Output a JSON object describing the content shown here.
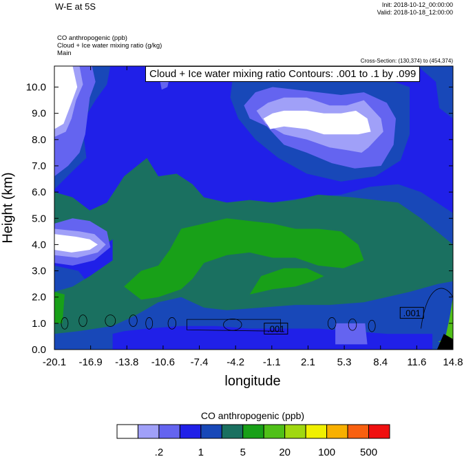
{
  "header": {
    "title": "W-E at 5S",
    "init": "Init: 2018-10-12_00:00:00",
    "valid": "Valid: 2018-10-18_12:00:00"
  },
  "info": {
    "line1": "CO anthropogenic   (ppb)",
    "line2": "Cloud + Ice water mixing ratio   (g/kg)",
    "line3": "Main"
  },
  "cross_section": "Cross-Section: (130,374) to (454,374)",
  "contour_label": "Cloud + Ice water mixing ratio Contours: .001 to .1 by .099",
  "colorbar": {
    "title": "CO anthropogenic  (ppb)",
    "colors": [
      "#ffffff",
      "#a0a0f8",
      "#6464f0",
      "#2020e8",
      "#1848b8",
      "#1a7060",
      "#18a018",
      "#50c018",
      "#a0d810",
      "#f0f000",
      "#f8b000",
      "#f86010",
      "#f01010"
    ],
    "tick_labels": [
      {
        "label": ".2",
        "boundary": 2
      },
      {
        "label": "1",
        "boundary": 4
      },
      {
        "label": "5",
        "boundary": 6
      },
      {
        "label": "20",
        "boundary": 8
      },
      {
        "label": "100",
        "boundary": 10
      },
      {
        "label": "500",
        "boundary": 12
      }
    ]
  },
  "chart_data": {
    "type": "heatmap",
    "title": "W-E at 5S",
    "xlabel": "longitude",
    "ylabel": "Height (km)",
    "xlim": [
      -20.1,
      14.8
    ],
    "ylim": [
      0.0,
      10.8
    ],
    "x_ticks": [
      "-20.1",
      "-16.9",
      "-13.8",
      "-10.6",
      "-7.4",
      "-4.2",
      "-1.1",
      "2.1",
      "5.3",
      "8.4",
      "11.6",
      "14.8"
    ],
    "y_ticks": [
      "0.0",
      "1.0",
      "2.0",
      "3.0",
      "4.0",
      "5.0",
      "6.0",
      "7.0",
      "8.0",
      "9.0",
      "10.0"
    ],
    "fill_variable": "CO anthropogenic (ppb)",
    "contour_variable": "Cloud + Ice water mixing ratio (g/kg)",
    "contour_line_labels": [
      {
        "text": ".001",
        "lon": -0.7,
        "height": 0.8
      },
      {
        "text": ".001",
        "lon": 11.2,
        "height": 1.4
      }
    ],
    "regions": [
      {
        "level": "1-2",
        "color": "#2020e8",
        "poly": [
          [
            -20.1,
            0
          ],
          [
            14.8,
            0
          ],
          [
            14.8,
            10.8
          ],
          [
            -20.1,
            10.8
          ]
        ]
      },
      {
        "level": "2-5",
        "color": "#1848b8",
        "poly": [
          [
            -16,
            1.9
          ],
          [
            -13,
            2.3
          ],
          [
            -10,
            3.8
          ],
          [
            -7,
            5.5
          ],
          [
            -4,
            5.6
          ],
          [
            -1,
            5.6
          ],
          [
            2,
            5.8
          ],
          [
            5,
            5.9
          ],
          [
            7.5,
            6.2
          ],
          [
            10,
            6.3
          ],
          [
            12,
            6.0
          ],
          [
            14.8,
            5.2
          ],
          [
            14.8,
            0
          ],
          [
            -20.1,
            0
          ],
          [
            -20.1,
            3.2
          ],
          [
            -18,
            3.0
          ]
        ]
      },
      {
        "level": "2-5",
        "color": "#1848b8",
        "poly": [
          [
            -20.1,
            6.1
          ],
          [
            -18.5,
            6.8
          ],
          [
            -17.3,
            7.3
          ],
          [
            -17.5,
            8.0
          ],
          [
            -17.2,
            9.0
          ],
          [
            -16.5,
            9.5
          ],
          [
            -16,
            9.8
          ],
          [
            -15.5,
            10.1
          ],
          [
            -15.2,
            10.8
          ],
          [
            -20.1,
            10.8
          ]
        ]
      },
      {
        "level": "2-5",
        "color": "#1848b8",
        "poly": [
          [
            -4.5,
            10.3
          ],
          [
            -3,
            10.5
          ],
          [
            0,
            10.6
          ],
          [
            3,
            10.4
          ],
          [
            6,
            10.5
          ],
          [
            9,
            10.3
          ],
          [
            11,
            10.0
          ],
          [
            11,
            8.2
          ],
          [
            10.2,
            7.2
          ],
          [
            8,
            6.6
          ],
          [
            5,
            6.4
          ],
          [
            2,
            6.7
          ],
          [
            -0.5,
            7.3
          ],
          [
            -2.5,
            8.0
          ],
          [
            -4,
            8.8
          ],
          [
            -4.7,
            9.6
          ]
        ]
      },
      {
        "level": "2-5",
        "color": "#1848b8",
        "poly": [
          [
            11.7,
            10.8
          ],
          [
            13.3,
            10.2
          ],
          [
            13.6,
            9.2
          ],
          [
            14.8,
            8.8
          ],
          [
            14.8,
            10.8
          ]
        ]
      },
      {
        "level": "5-10",
        "color": "#1a7060",
        "poly": [
          [
            -20.1,
            0.6
          ],
          [
            -18,
            0.7
          ],
          [
            -15,
            0.9
          ],
          [
            -13,
            1.3
          ],
          [
            -11,
            1.8
          ],
          [
            -9,
            2.0
          ],
          [
            -7,
            1.6
          ],
          [
            -5,
            1.5
          ],
          [
            -2,
            1.6
          ],
          [
            1,
            1.7
          ],
          [
            4,
            1.7
          ],
          [
            7,
            1.8
          ],
          [
            9,
            2.0
          ],
          [
            11,
            2.2
          ],
          [
            13.5,
            2.5
          ],
          [
            14.8,
            2.6
          ],
          [
            14.8,
            4.0
          ],
          [
            12,
            5.0
          ],
          [
            10,
            5.6
          ],
          [
            8,
            5.7
          ],
          [
            6,
            5.8
          ],
          [
            3,
            5.9
          ],
          [
            1,
            5.7
          ],
          [
            -1,
            5.6
          ],
          [
            -3,
            5.7
          ],
          [
            -5,
            5.6
          ],
          [
            -7,
            5.8
          ],
          [
            -8,
            6.3
          ],
          [
            -9.4,
            6.7
          ],
          [
            -11,
            6.6
          ],
          [
            -12,
            7.3
          ],
          [
            -14,
            6.6
          ],
          [
            -15.5,
            5.6
          ],
          [
            -17,
            5.3
          ],
          [
            -18.5,
            5.8
          ],
          [
            -20.1,
            6.0
          ],
          [
            -20.1,
            4.4
          ],
          [
            -19,
            4.4
          ],
          [
            -18,
            4.1
          ],
          [
            -16,
            3.9
          ],
          [
            -15,
            4.2
          ],
          [
            -15,
            3.4
          ],
          [
            -17,
            2.8
          ],
          [
            -18.5,
            2.4
          ],
          [
            -20.1,
            2.2
          ]
        ]
      },
      {
        "level": "10-20",
        "color": "#18a018",
        "poly": [
          [
            -14,
            2.4
          ],
          [
            -12.5,
            3.0
          ],
          [
            -11,
            3.2
          ],
          [
            -10,
            3.8
          ],
          [
            -9,
            4.6
          ],
          [
            -7,
            4.8
          ],
          [
            -5,
            5.0
          ],
          [
            -3,
            4.9
          ],
          [
            -1,
            4.8
          ],
          [
            1,
            4.6
          ],
          [
            3,
            4.6
          ],
          [
            5,
            4.5
          ],
          [
            6.5,
            4.0
          ],
          [
            7,
            3.4
          ],
          [
            5.2,
            3.1
          ],
          [
            3,
            3.2
          ],
          [
            1,
            3.5
          ],
          [
            -1,
            3.5
          ],
          [
            -3,
            3.7
          ],
          [
            -5,
            3.6
          ],
          [
            -7,
            3.3
          ],
          [
            -8,
            2.7
          ],
          [
            -9,
            2.3
          ],
          [
            -11,
            2.0
          ],
          [
            -12.5,
            1.9
          ]
        ]
      },
      {
        "level": "10-20",
        "color": "#18a018",
        "poly": [
          [
            -20.1,
            1.0
          ],
          [
            -19.4,
            1.0
          ],
          [
            -19.2,
            2.1
          ],
          [
            -20.1,
            2.2
          ]
        ]
      },
      {
        "level": "10-20",
        "color": "#18a018",
        "poly": [
          [
            -3,
            2.1
          ],
          [
            -1,
            2.3
          ],
          [
            1,
            2.4
          ],
          [
            2.5,
            2.6
          ],
          [
            3.5,
            2.8
          ],
          [
            2,
            3.1
          ],
          [
            0,
            3.1
          ],
          [
            -2,
            2.8
          ]
        ]
      },
      {
        "level": "20-50",
        "color": "#50c018",
        "poly": [
          [
            13.5,
            0.3
          ],
          [
            14.1,
            0.4
          ],
          [
            14.5,
            1.2
          ],
          [
            14.8,
            2.0
          ],
          [
            14.8,
            0.2
          ]
        ]
      },
      {
        "level": "1-2",
        "color": "#2020e8",
        "poly": [
          [
            -15,
            0.0
          ],
          [
            13,
            0.0
          ],
          [
            13,
            0.6
          ],
          [
            9,
            0.6
          ],
          [
            6,
            0.7
          ],
          [
            3,
            0.8
          ],
          [
            0,
            0.8
          ],
          [
            -3,
            0.8
          ],
          [
            -6,
            0.9
          ],
          [
            -9,
            0.9
          ],
          [
            -12,
            0.8
          ],
          [
            -14,
            0.7
          ],
          [
            -15,
            0.6
          ]
        ]
      },
      {
        "level": "0.5-1",
        "color": "#6464f0",
        "poly": [
          [
            -20.1,
            4.8
          ],
          [
            -18.5,
            5.0
          ],
          [
            -17,
            4.9
          ],
          [
            -15.5,
            4.5
          ],
          [
            -15.2,
            3.9
          ],
          [
            -16.6,
            3.4
          ],
          [
            -18.5,
            3.2
          ],
          [
            -20.1,
            3.3
          ]
        ]
      },
      {
        "level": "0.5-1",
        "color": "#6464f0",
        "poly": [
          [
            -3.5,
            9.3
          ],
          [
            -2.5,
            9.8
          ],
          [
            -1,
            10.0
          ],
          [
            1,
            9.9
          ],
          [
            3,
            9.8
          ],
          [
            5,
            9.7
          ],
          [
            7,
            9.8
          ],
          [
            9,
            9.4
          ],
          [
            9.8,
            8.8
          ],
          [
            9.6,
            7.8
          ],
          [
            8.5,
            7.0
          ],
          [
            6.2,
            6.9
          ],
          [
            4.2,
            7.1
          ],
          [
            2,
            7.5
          ],
          [
            0,
            7.8
          ],
          [
            -1.5,
            8.5
          ],
          [
            -3,
            8.8
          ]
        ]
      },
      {
        "level": "0.5-1",
        "color": "#6464f0",
        "poly": [
          [
            -20.1,
            10.8
          ],
          [
            -16.8,
            10.8
          ],
          [
            -16.5,
            10.2
          ],
          [
            -17,
            9.6
          ],
          [
            -17.4,
            8.2
          ],
          [
            -17.9,
            7.5
          ],
          [
            -18.9,
            7.0
          ],
          [
            -20.1,
            6.6
          ]
        ]
      },
      {
        "level": "0.5-1",
        "color": "#6464f0",
        "poly": [
          [
            -11.1,
            10.8
          ],
          [
            -9.8,
            10.8
          ],
          [
            -10.2,
            10.0
          ],
          [
            -10.7,
            9.9
          ]
        ]
      },
      {
        "level": "0.5-1",
        "color": "#6464f0",
        "poly": [
          [
            4.5,
            1.0
          ],
          [
            7.1,
            1.0
          ],
          [
            7.3,
            0.2
          ],
          [
            4.5,
            0.2
          ]
        ]
      },
      {
        "level": "0.2-0.5",
        "color": "#a0a0f8",
        "poly": [
          [
            -20.1,
            4.6
          ],
          [
            -17.9,
            4.5
          ],
          [
            -16.6,
            4.4
          ],
          [
            -15.6,
            4.0
          ],
          [
            -16.3,
            3.7
          ],
          [
            -18.1,
            3.5
          ],
          [
            -20.1,
            3.6
          ]
        ]
      },
      {
        "level": "0.2-0.5",
        "color": "#a0a0f8",
        "poly": [
          [
            -2.4,
            9.1
          ],
          [
            -1.4,
            9.4
          ],
          [
            0,
            9.6
          ],
          [
            2,
            9.6
          ],
          [
            4,
            9.3
          ],
          [
            5.5,
            9.3
          ],
          [
            7,
            9.5
          ],
          [
            8.5,
            8.8
          ],
          [
            8.7,
            8.3
          ],
          [
            7.4,
            7.7
          ],
          [
            6.8,
            7.5
          ],
          [
            5.5,
            7.6
          ],
          [
            4,
            7.7
          ],
          [
            2,
            8.0
          ],
          [
            0,
            8.2
          ],
          [
            -1.6,
            8.6
          ]
        ]
      },
      {
        "level": "0.2-0.5",
        "color": "#a0a0f8",
        "poly": [
          [
            -20.1,
            10.8
          ],
          [
            -17.9,
            10.8
          ],
          [
            -17.6,
            10.1
          ],
          [
            -18.2,
            9.5
          ],
          [
            -18.6,
            8.8
          ],
          [
            -19.1,
            8.3
          ],
          [
            -20.1,
            8.1
          ]
        ]
      },
      {
        "level": "0.2-0.5",
        "color": "#a0a0f8",
        "poly": [
          [
            -12.1,
            10.8
          ],
          [
            -11.2,
            10.8
          ],
          [
            -11.4,
            10.4
          ],
          [
            -11.9,
            10.4
          ]
        ]
      },
      {
        "level": "0.1-0.2",
        "color": "#ffffff",
        "poly": [
          [
            -20.1,
            10.8
          ],
          [
            -18.5,
            10.8
          ],
          [
            -18.1,
            10.0
          ],
          [
            -18.6,
            9.4
          ],
          [
            -19.3,
            8.6
          ],
          [
            -20.1,
            8.4
          ]
        ]
      },
      {
        "level": "0.1-0.2",
        "color": "#ffffff",
        "poly": [
          [
            -20.1,
            4.4
          ],
          [
            -18.2,
            4.3
          ],
          [
            -17,
            4.2
          ],
          [
            -16.3,
            4.0
          ],
          [
            -17,
            3.8
          ],
          [
            -18.6,
            3.7
          ],
          [
            -20.1,
            3.8
          ]
        ]
      },
      {
        "level": "0.1-0.2",
        "color": "#ffffff",
        "poly": [
          [
            -1.8,
            8.8
          ],
          [
            -1,
            9.0
          ],
          [
            0,
            9.1
          ],
          [
            2,
            9.1
          ],
          [
            3.5,
            9.0
          ],
          [
            5,
            9.0
          ],
          [
            6.3,
            9.1
          ],
          [
            7.3,
            8.8
          ],
          [
            7.6,
            8.3
          ],
          [
            6.5,
            8.2
          ],
          [
            5,
            8.2
          ],
          [
            3.5,
            8.2
          ],
          [
            2,
            8.4
          ],
          [
            0,
            8.5
          ],
          [
            -1.2,
            8.4
          ]
        ]
      },
      {
        "level": "0.1-0.2",
        "color": "#ffffff",
        "poly": [
          [
            -11.8,
            10.8
          ],
          [
            -11.5,
            10.8
          ],
          [
            -11.6,
            10.55
          ],
          [
            -11.75,
            10.55
          ]
        ]
      }
    ]
  }
}
